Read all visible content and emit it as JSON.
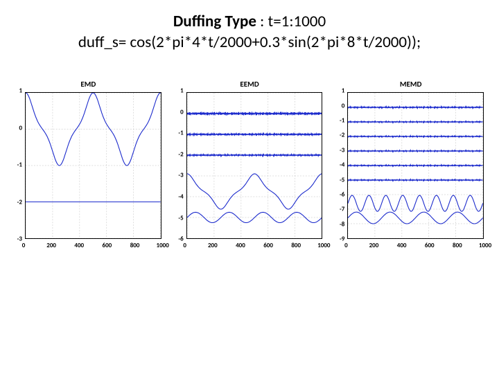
{
  "header": {
    "title_bold": "Duffing Type",
    "title_rest": " : t=1:1000",
    "formula": "duff_s= cos(2*pi*4*t/2000+0.3*sin(2*pi*8*t/2000));"
  },
  "colors": {
    "bg": "#ffffff",
    "axis": "#000000",
    "grid": "#bdbdbd",
    "line": "#1b2acc"
  },
  "chart_layout": {
    "xlim": [
      0,
      1000
    ],
    "xtick_step": 200,
    "xticks": [
      "0",
      "200",
      "400",
      "600",
      "800",
      "1000"
    ],
    "grid_on": true,
    "line_width": 1.1,
    "title_fontsize": 11,
    "tick_fontsize": 9
  },
  "panels": [
    {
      "title": "EMD",
      "ylim": [
        -3,
        1
      ],
      "yticks": [
        "1",
        "0",
        "-1",
        "-2",
        "-3"
      ],
      "series": [
        {
          "type": "duffing",
          "amp": 1,
          "offset": 0,
          "phase": 0
        },
        {
          "type": "flat",
          "offset": -2
        }
      ]
    },
    {
      "title": "EEMD",
      "ylim": [
        -6,
        1
      ],
      "yticks": [
        "1",
        "0",
        "-1",
        "-2",
        "-3",
        "-4",
        "-5",
        "-6"
      ],
      "series": [
        {
          "type": "fuzz",
          "offset": 0,
          "amp": 0.08
        },
        {
          "type": "fuzz",
          "offset": -1,
          "amp": 0.06
        },
        {
          "type": "fuzz",
          "offset": -2,
          "amp": 0.05
        },
        {
          "type": "duffing",
          "amp": 0.85,
          "offset": -3.75,
          "phase": 0
        },
        {
          "type": "sine",
          "amp": 0.25,
          "offset": -5,
          "cycles": 4
        }
      ]
    },
    {
      "title": "MEMD",
      "ylim": [
        -9,
        1
      ],
      "yticks": [
        "1",
        "0",
        "-1",
        "-2",
        "-3",
        "-4",
        "-5",
        "-6",
        "-7",
        "-8",
        "-9"
      ],
      "series": [
        {
          "type": "fuzz",
          "offset": 0,
          "amp": 0.06
        },
        {
          "type": "fuzz",
          "offset": -1,
          "amp": 0.05
        },
        {
          "type": "fuzz",
          "offset": -2,
          "amp": 0.05
        },
        {
          "type": "fuzz",
          "offset": -3,
          "amp": 0.05
        },
        {
          "type": "fuzz",
          "offset": -4,
          "amp": 0.05
        },
        {
          "type": "fuzz",
          "offset": -5,
          "amp": 0.05
        },
        {
          "type": "sine",
          "amp": 0.55,
          "offset": -6.6,
          "cycles": 8
        },
        {
          "type": "sine",
          "amp": 0.4,
          "offset": -7.6,
          "cycles": 4
        }
      ]
    }
  ]
}
